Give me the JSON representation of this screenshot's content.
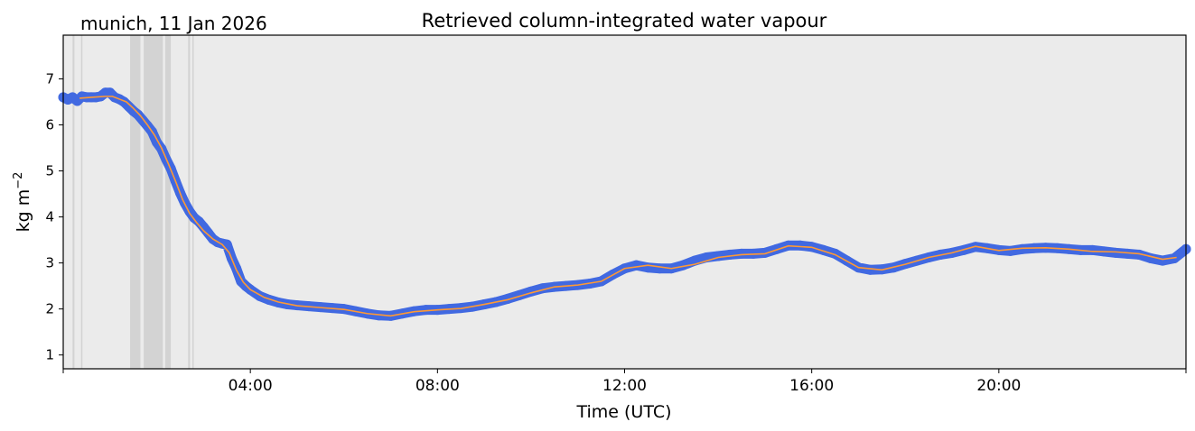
{
  "location_label": "munich, 11 Jan 2026",
  "chart_data": {
    "type": "scatter",
    "title": "Retrieved column-integrated water vapour",
    "xlabel": "Time (UTC)",
    "ylabel": "kg m−2",
    "ylabel_base": "kg m",
    "ylabel_sup": "−2",
    "xlim": [
      0,
      24
    ],
    "ylim": [
      0.7,
      7.95
    ],
    "xticks": [
      {
        "value": 4,
        "label": "04:00"
      },
      {
        "value": 8,
        "label": "08:00"
      },
      {
        "value": 12,
        "label": "12:00"
      },
      {
        "value": 16,
        "label": "16:00"
      },
      {
        "value": 20,
        "label": "20:00"
      }
    ],
    "yticks": [
      1,
      2,
      3,
      4,
      5,
      6,
      7
    ],
    "grid": false,
    "colors": {
      "background": "#ebebeb",
      "points": "#4169e1",
      "smoothed": "#ff9933",
      "shading": "#d3d3d3"
    },
    "shaded_intervals": [
      [
        0.2,
        0.24
      ],
      [
        0.38,
        0.41
      ],
      [
        1.43,
        1.65
      ],
      [
        1.72,
        2.13
      ],
      [
        2.18,
        2.3
      ],
      [
        2.67,
        2.71
      ],
      [
        2.76,
        2.79
      ]
    ],
    "series": [
      {
        "kind": "smoothed",
        "x": [
          0.35,
          0.6,
          0.9,
          1.05,
          1.2,
          1.35,
          1.5,
          1.65,
          1.8,
          1.95,
          2.1,
          2.25,
          2.4,
          2.55,
          2.7,
          2.85,
          3.0,
          3.2,
          3.4,
          3.55,
          3.7,
          3.85,
          4.0,
          4.3,
          4.6,
          5.0,
          5.5,
          6.0,
          6.5,
          7.0,
          7.5,
          8.0,
          8.5,
          9.0,
          9.5,
          10.0,
          10.5,
          11.0,
          11.5,
          12.0,
          12.5,
          13.0,
          13.5,
          14.0,
          14.5,
          15.0,
          15.5,
          16.0,
          16.5,
          17.0,
          17.5,
          18.0,
          18.5,
          19.0,
          19.5,
          20.0,
          20.5,
          21.0,
          21.5,
          22.0,
          22.5,
          23.0,
          23.5,
          23.8
        ],
        "y": [
          6.58,
          6.6,
          6.62,
          6.62,
          6.56,
          6.5,
          6.36,
          6.2,
          6.0,
          5.78,
          5.5,
          5.15,
          4.78,
          4.38,
          4.08,
          3.88,
          3.7,
          3.52,
          3.4,
          3.22,
          2.85,
          2.58,
          2.42,
          2.25,
          2.15,
          2.07,
          2.03,
          1.99,
          1.9,
          1.85,
          1.94,
          1.98,
          2.01,
          2.1,
          2.2,
          2.35,
          2.48,
          2.52,
          2.6,
          2.88,
          2.95,
          2.88,
          2.97,
          3.12,
          3.18,
          3.2,
          3.37,
          3.34,
          3.18,
          2.9,
          2.85,
          2.97,
          3.12,
          3.22,
          3.36,
          3.27,
          3.32,
          3.33,
          3.3,
          3.25,
          3.24,
          3.2,
          3.08,
          3.12
        ]
      },
      {
        "kind": "scatter",
        "x": [
          0.0,
          0.1,
          0.2,
          0.3,
          0.4,
          0.5,
          0.6,
          0.7,
          0.8,
          0.9,
          1.0,
          1.1,
          1.2,
          1.3,
          1.4,
          1.5,
          1.6,
          1.7,
          1.8,
          1.9,
          2.0,
          2.1,
          2.2,
          2.3,
          2.4,
          2.5,
          2.6,
          2.7,
          2.8,
          2.9,
          3.0,
          3.1,
          3.2,
          3.3,
          3.4,
          3.5,
          3.6,
          3.7,
          3.8,
          3.9,
          4.0,
          4.2,
          4.4,
          4.6,
          4.8,
          5.0,
          5.25,
          5.5,
          5.75,
          6.0,
          6.25,
          6.5,
          6.75,
          7.0,
          7.25,
          7.5,
          7.75,
          8.0,
          8.25,
          8.5,
          8.75,
          9.0,
          9.25,
          9.5,
          9.75,
          10.0,
          10.25,
          10.5,
          10.75,
          11.0,
          11.25,
          11.5,
          11.75,
          12.0,
          12.25,
          12.5,
          12.75,
          13.0,
          13.25,
          13.5,
          13.75,
          14.0,
          14.25,
          14.5,
          14.75,
          15.0,
          15.25,
          15.5,
          15.75,
          16.0,
          16.25,
          16.5,
          16.75,
          17.0,
          17.25,
          17.5,
          17.75,
          18.0,
          18.25,
          18.5,
          18.75,
          19.0,
          19.25,
          19.5,
          19.75,
          20.0,
          20.25,
          20.5,
          20.75,
          21.0,
          21.25,
          21.5,
          21.75,
          22.0,
          22.25,
          22.5,
          22.75,
          23.0,
          23.25,
          23.5,
          23.75,
          24.0
        ],
        "y": [
          6.6,
          6.55,
          6.6,
          6.52,
          6.62,
          6.6,
          6.6,
          6.6,
          6.62,
          6.7,
          6.7,
          6.6,
          6.56,
          6.5,
          6.4,
          6.3,
          6.22,
          6.1,
          5.98,
          5.85,
          5.62,
          5.48,
          5.25,
          5.05,
          4.78,
          4.52,
          4.3,
          4.12,
          3.98,
          3.9,
          3.78,
          3.65,
          3.52,
          3.45,
          3.42,
          3.4,
          3.1,
          2.88,
          2.6,
          2.5,
          2.42,
          2.28,
          2.2,
          2.14,
          2.1,
          2.08,
          2.06,
          2.04,
          2.02,
          2.0,
          1.95,
          1.9,
          1.86,
          1.85,
          1.9,
          1.95,
          1.98,
          1.98,
          2.0,
          2.02,
          2.05,
          2.1,
          2.15,
          2.22,
          2.3,
          2.38,
          2.45,
          2.48,
          2.5,
          2.52,
          2.55,
          2.6,
          2.75,
          2.88,
          2.95,
          2.9,
          2.88,
          2.88,
          2.95,
          3.05,
          3.12,
          3.15,
          3.18,
          3.2,
          3.2,
          3.22,
          3.3,
          3.38,
          3.38,
          3.35,
          3.28,
          3.2,
          3.05,
          2.9,
          2.85,
          2.86,
          2.9,
          2.98,
          3.05,
          3.12,
          3.18,
          3.22,
          3.28,
          3.35,
          3.32,
          3.28,
          3.26,
          3.3,
          3.32,
          3.33,
          3.32,
          3.3,
          3.28,
          3.28,
          3.25,
          3.22,
          3.2,
          3.18,
          3.1,
          3.05,
          3.1,
          3.3
        ]
      }
    ]
  }
}
